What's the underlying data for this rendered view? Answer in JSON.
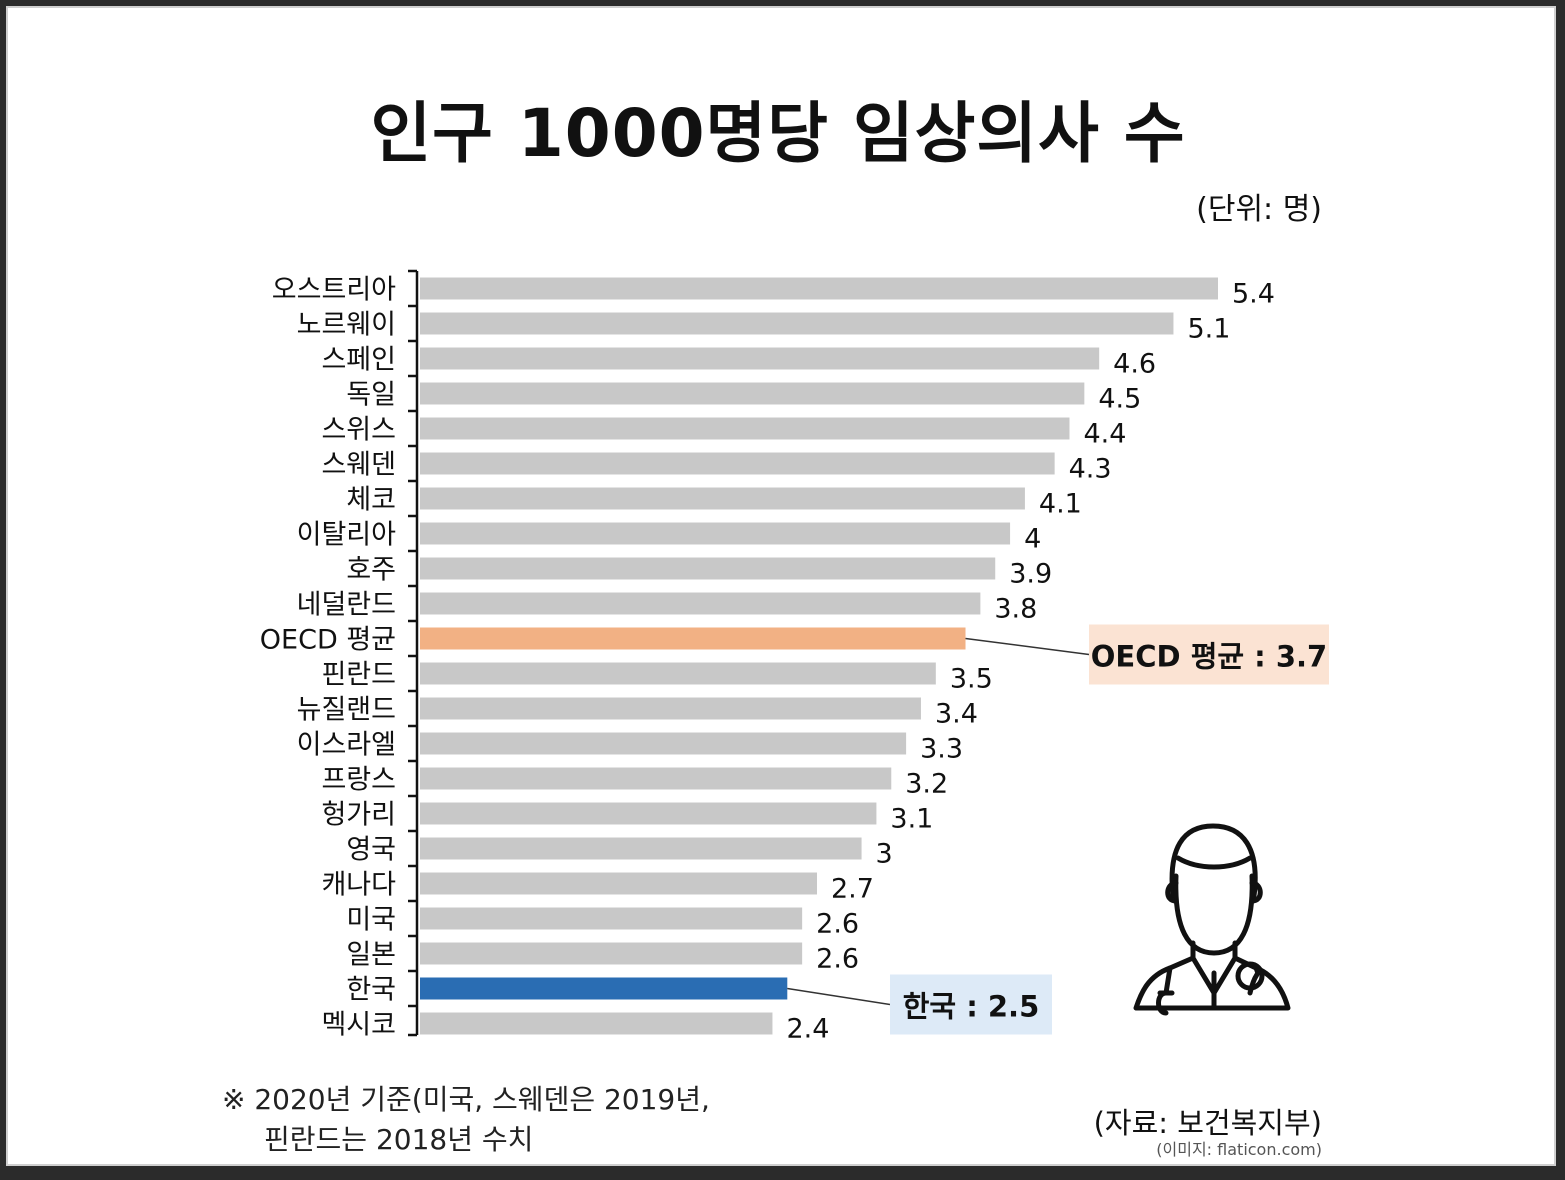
{
  "title": "인구 1000명당 임상의사 수",
  "unit_label": "(단위: 명)",
  "footnote": {
    "line1": "※ 2020년 기준(미국, 스웨덴은 2019년,",
    "line2": "핀란드는 2018년 수치"
  },
  "source": "(자료: 보건복지부)",
  "image_credit": "(이미지: flaticon.com)",
  "icon": "doctor-icon",
  "colors": {
    "default_bar": "#c8c8c8",
    "oecd_bar": "#f2b184",
    "korea_bar": "#2a6db3",
    "oecd_callout_bg": "#fbe3d3",
    "korea_callout_bg": "#ddeaf7"
  },
  "chart_data": {
    "type": "bar",
    "orientation": "horizontal",
    "categories": [
      "오스트리아",
      "노르웨이",
      "스페인",
      "독일",
      "스위스",
      "스웨덴",
      "체코",
      "이탈리아",
      "호주",
      "네덜란드",
      "OECD 평균",
      "핀란드",
      "뉴질랜드",
      "이스라엘",
      "프랑스",
      "헝가리",
      "영국",
      "캐나다",
      "미국",
      "일본",
      "한국",
      "멕시코"
    ],
    "values": [
      5.4,
      5.1,
      4.6,
      4.5,
      4.4,
      4.3,
      4.1,
      4,
      3.9,
      3.8,
      3.7,
      3.5,
      3.4,
      3.3,
      3.2,
      3.1,
      3,
      2.7,
      2.6,
      2.6,
      2.5,
      2.4
    ],
    "value_labels": [
      "5.4",
      "5.1",
      "4.6",
      "4.5",
      "4.4",
      "4.3",
      "4.1",
      "4",
      "3.9",
      "3.8",
      "",
      "3.5",
      "3.4",
      "3.3",
      "3.2",
      "3.1",
      "3",
      "2.7",
      "2.6",
      "2.6",
      "",
      "2.4"
    ],
    "highlights": [
      {
        "category": "OECD 평균",
        "label": "OECD 평균 : 3.7",
        "color": "#f2b184"
      },
      {
        "category": "한국",
        "label": "한국 : 2.5",
        "color": "#2a6db3"
      }
    ],
    "xlim": [
      0,
      5.4
    ],
    "grid": false
  }
}
